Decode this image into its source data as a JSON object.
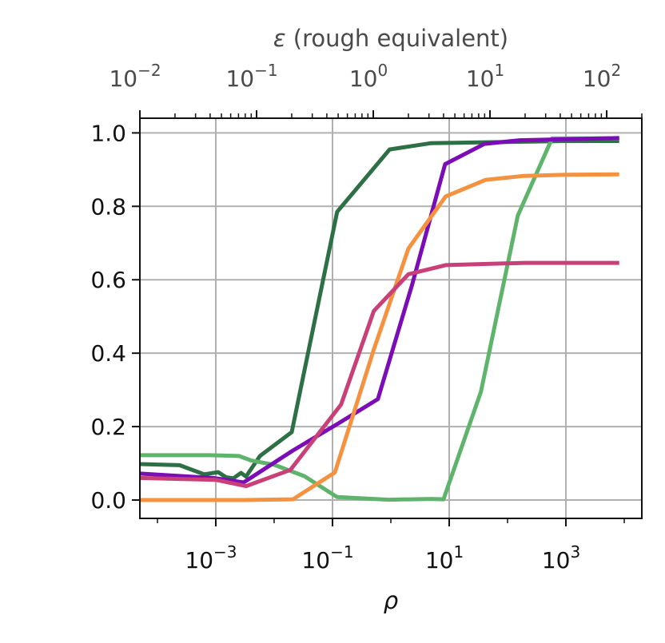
{
  "chart_data": {
    "type": "line",
    "xlabel": "ρ",
    "ylabel": "",
    "x_scale": "log",
    "xlim": [
      5e-05,
      20000
    ],
    "ylim": [
      -0.05,
      1.04
    ],
    "x_ticks": [
      {
        "value": 0.001,
        "base": "10",
        "exp": "−3"
      },
      {
        "value": 0.1,
        "base": "10",
        "exp": "−1"
      },
      {
        "value": 10,
        "base": "10",
        "exp": "1"
      },
      {
        "value": 1000,
        "base": "10",
        "exp": "3"
      }
    ],
    "y_ticks": [
      {
        "value": 0.0,
        "label": "0.0"
      },
      {
        "value": 0.2,
        "label": "0.2"
      },
      {
        "value": 0.4,
        "label": "0.4"
      },
      {
        "value": 0.6,
        "label": "0.6"
      },
      {
        "value": 0.8,
        "label": "0.8"
      },
      {
        "value": 1.0,
        "label": "1.0"
      }
    ],
    "grid": true,
    "secondary_xaxis": {
      "label_symbol": "ε",
      "label_text": " (rough equivalent)",
      "scale": "log",
      "xlim": [
        0.01,
        200
      ],
      "ticks": [
        {
          "value": 0.01,
          "base": "10",
          "exp": "−2"
        },
        {
          "value": 0.1,
          "base": "10",
          "exp": "−1"
        },
        {
          "value": 1,
          "base": "10",
          "exp": "0"
        },
        {
          "value": 10,
          "base": "10",
          "exp": "1"
        },
        {
          "value": 100,
          "base": "10",
          "exp": "2"
        }
      ]
    },
    "series": [
      {
        "color": "#2e7045",
        "points": [
          [
            5e-05,
            0.098
          ],
          [
            0.00024,
            0.095
          ],
          [
            0.00063,
            0.07
          ],
          [
            0.0011,
            0.076
          ],
          [
            0.0015,
            0.062
          ],
          [
            0.002,
            0.059
          ],
          [
            0.0027,
            0.074
          ],
          [
            0.0033,
            0.064
          ],
          [
            0.0057,
            0.12
          ],
          [
            0.02,
            0.185
          ],
          [
            0.12,
            0.785
          ],
          [
            0.95,
            0.955
          ],
          [
            4.8,
            0.972
          ],
          [
            72,
            0.975
          ],
          [
            1000,
            0.978
          ],
          [
            8200,
            0.978
          ]
        ]
      },
      {
        "color": "#5eb46b",
        "points": [
          [
            5e-05,
            0.122
          ],
          [
            0.0008,
            0.122
          ],
          [
            0.0025,
            0.12
          ],
          [
            0.004,
            0.108
          ],
          [
            0.01,
            0.096
          ],
          [
            0.033,
            0.065
          ],
          [
            0.12,
            0.008
          ],
          [
            0.92,
            0.001
          ],
          [
            5,
            0.003
          ],
          [
            8,
            0.002
          ],
          [
            35,
            0.295
          ],
          [
            150,
            0.775
          ],
          [
            580,
            0.985
          ],
          [
            8200,
            0.985
          ]
        ]
      },
      {
        "color": "#7a0db5",
        "points": [
          [
            5e-05,
            0.072
          ],
          [
            0.0009,
            0.06
          ],
          [
            0.003,
            0.048
          ],
          [
            0.021,
            0.135
          ],
          [
            0.13,
            0.21
          ],
          [
            0.6,
            0.275
          ],
          [
            2.3,
            0.585
          ],
          [
            8.5,
            0.915
          ],
          [
            40,
            0.97
          ],
          [
            160,
            0.98
          ],
          [
            8200,
            0.986
          ]
        ]
      },
      {
        "color": "#f59240",
        "points": [
          [
            5e-05,
            0.0
          ],
          [
            0.003,
            0.0
          ],
          [
            0.021,
            0.002
          ],
          [
            0.11,
            0.075
          ],
          [
            0.51,
            0.41
          ],
          [
            2,
            0.685
          ],
          [
            8.7,
            0.827
          ],
          [
            42,
            0.872
          ],
          [
            190,
            0.883
          ],
          [
            1000,
            0.886
          ],
          [
            8200,
            0.887
          ]
        ]
      },
      {
        "color": "#c93f77",
        "points": [
          [
            5e-05,
            0.06
          ],
          [
            0.001,
            0.055
          ],
          [
            0.0033,
            0.038
          ],
          [
            0.019,
            0.082
          ],
          [
            0.14,
            0.26
          ],
          [
            0.51,
            0.515
          ],
          [
            2,
            0.615
          ],
          [
            8.7,
            0.64
          ],
          [
            195,
            0.646
          ],
          [
            8200,
            0.646
          ]
        ]
      }
    ]
  }
}
